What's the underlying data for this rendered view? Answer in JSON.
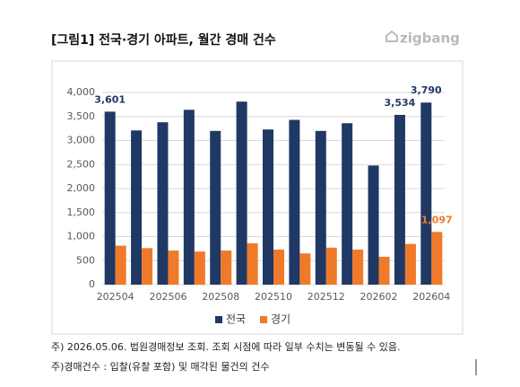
{
  "chart_data": {
    "type": "bar",
    "title": "[그림1] 전국·경기 아파트, 월간 경매 건수",
    "logo": "zigbang",
    "categories": [
      "202504",
      null,
      "202506",
      null,
      "202508",
      null,
      "202510",
      null,
      "202512",
      null,
      "202602",
      null,
      "202604"
    ],
    "series": [
      {
        "name": "전국",
        "color": "#203864",
        "values": [
          3601,
          3210,
          3380,
          3640,
          3200,
          3810,
          3230,
          3430,
          3200,
          3360,
          2480,
          3534,
          3790
        ],
        "value_labels": [
          "3,601",
          null,
          null,
          null,
          null,
          null,
          null,
          null,
          null,
          null,
          null,
          "3,534",
          "3,790"
        ]
      },
      {
        "name": "경기",
        "color": "#f07a2a",
        "values": [
          811,
          760,
          710,
          690,
          710,
          860,
          730,
          650,
          770,
          730,
          580,
          847,
          1097
        ],
        "value_labels": [
          null,
          null,
          null,
          null,
          null,
          null,
          null,
          null,
          null,
          null,
          null,
          null,
          "1,097"
        ]
      }
    ],
    "ylim": [
      0,
      4000
    ],
    "yticks": [
      0,
      500,
      {
        "value": 1000,
        "label": "1,000"
      },
      {
        "value": 1500,
        "label": "1,500"
      },
      {
        "value": 2000,
        "label": "2,000"
      },
      {
        "value": 2500,
        "label": "2,500"
      },
      {
        "value": 3000,
        "label": "3,000"
      },
      {
        "value": 3500,
        "label": "3,500"
      },
      {
        "value": 4000,
        "label": "4,000"
      }
    ],
    "grid": true,
    "legend": "bottom",
    "notes": [
      "주) 2026.05.06. 법원경매정보 조회. 조회 시점에 따라 일부 수치는 변동될 수 있음.",
      "주)경매건수 : 입찰(유찰 포함) 및 매각된 물건의 건수"
    ]
  }
}
